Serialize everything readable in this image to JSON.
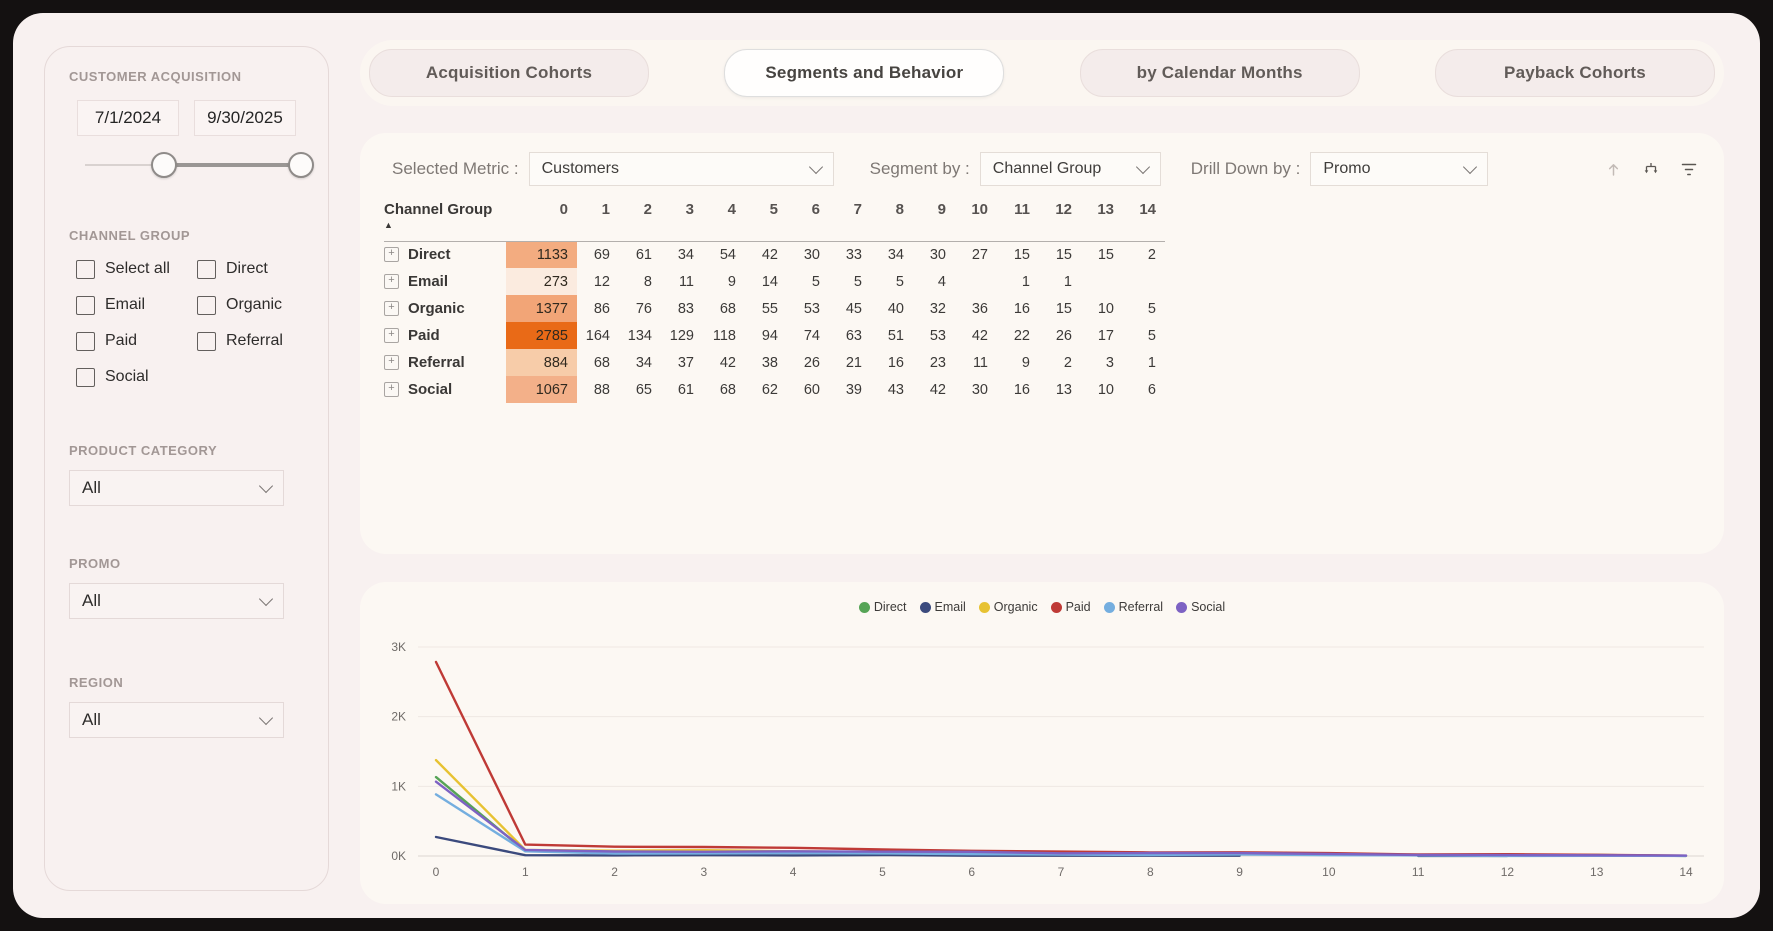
{
  "colors": {
    "page_bg": "#f8f1f0",
    "frame": "#141111",
    "panel_bg": "#fcf8f3",
    "heat_max": "#E96A17"
  },
  "sidebar": {
    "acquisition_title": "CUSTOMER ACQUISITION",
    "date_from": "7/1/2024",
    "date_to": "9/30/2025",
    "channel_group": {
      "title": "CHANNEL GROUP",
      "options": [
        "Select all",
        "Direct",
        "Email",
        "Organic",
        "Paid",
        "Referral",
        "Social"
      ]
    },
    "product_category": {
      "title": "PRODUCT CATEGORY",
      "value": "All"
    },
    "promo": {
      "title": "PROMO",
      "value": "All"
    },
    "region": {
      "title": "REGION",
      "value": "All"
    }
  },
  "tabs": [
    {
      "label": "Acquisition Cohorts",
      "active": false
    },
    {
      "label": "Segments and Behavior",
      "active": true
    },
    {
      "label": "by Calendar Months",
      "active": false
    },
    {
      "label": "Payback Cohorts",
      "active": false
    }
  ],
  "matrix": {
    "selected_metric_label": "Selected Metric :",
    "selected_metric_value": "Customers",
    "segment_by_label": "Segment by :",
    "segment_by_value": "Channel Group",
    "drilldown_label": "Drill Down by :",
    "drilldown_value": "Promo",
    "row_header": "Channel Group",
    "sort_icon": "asc-triangle",
    "col_headers": [
      "0",
      "1",
      "2",
      "3",
      "4",
      "5",
      "6",
      "7",
      "8",
      "9",
      "10",
      "11",
      "12",
      "13",
      "14"
    ],
    "rows": [
      {
        "name": "Direct",
        "heat": "#F3AC80",
        "values": [
          1133,
          69,
          61,
          34,
          54,
          42,
          30,
          33,
          34,
          30,
          27,
          15,
          15,
          15,
          2
        ]
      },
      {
        "name": "Email",
        "heat": "#FBEBDF",
        "values": [
          273,
          12,
          8,
          11,
          9,
          14,
          5,
          5,
          5,
          4,
          null,
          1,
          1,
          null,
          null
        ]
      },
      {
        "name": "Organic",
        "heat": "#F2A577",
        "values": [
          1377,
          86,
          76,
          83,
          68,
          55,
          53,
          45,
          40,
          32,
          36,
          16,
          15,
          10,
          5
        ]
      },
      {
        "name": "Paid",
        "heat": "#E96A17",
        "values": [
          2785,
          164,
          134,
          129,
          118,
          94,
          74,
          63,
          51,
          53,
          42,
          22,
          26,
          17,
          5
        ]
      },
      {
        "name": "Referral",
        "heat": "#F7CCA9",
        "values": [
          884,
          68,
          34,
          37,
          42,
          38,
          26,
          21,
          16,
          23,
          11,
          9,
          2,
          3,
          1
        ]
      },
      {
        "name": "Social",
        "heat": "#F3B089",
        "values": [
          1067,
          88,
          65,
          61,
          68,
          62,
          60,
          39,
          43,
          42,
          30,
          16,
          13,
          10,
          6
        ]
      }
    ]
  },
  "header_icons": [
    "arrow-up-icon",
    "drill-down-icon",
    "filter-icon"
  ],
  "chart_data": {
    "type": "line",
    "x": [
      0,
      1,
      2,
      3,
      4,
      5,
      6,
      7,
      8,
      9,
      10,
      11,
      12,
      13,
      14
    ],
    "xlim": [
      0,
      14
    ],
    "ylim": [
      0,
      3000
    ],
    "y_ticks": [
      {
        "label": "0K",
        "value": 0
      },
      {
        "label": "1K",
        "value": 1000
      },
      {
        "label": "2K",
        "value": 2000
      },
      {
        "label": "3K",
        "value": 3000
      }
    ],
    "grid": true,
    "legend_position": "top-center",
    "series": [
      {
        "name": "Direct",
        "color": "#56A456",
        "values": [
          1133,
          69,
          61,
          34,
          54,
          42,
          30,
          33,
          34,
          30,
          27,
          15,
          15,
          15,
          2
        ]
      },
      {
        "name": "Email",
        "color": "#3B4A7D",
        "values": [
          273,
          12,
          8,
          11,
          9,
          14,
          5,
          5,
          5,
          4,
          null,
          1,
          1,
          null,
          null
        ]
      },
      {
        "name": "Organic",
        "color": "#E7C232",
        "values": [
          1377,
          86,
          76,
          83,
          68,
          55,
          53,
          45,
          40,
          32,
          36,
          16,
          15,
          10,
          5
        ]
      },
      {
        "name": "Paid",
        "color": "#BF3A36",
        "values": [
          2785,
          164,
          134,
          129,
          118,
          94,
          74,
          63,
          51,
          53,
          42,
          22,
          26,
          17,
          5
        ]
      },
      {
        "name": "Referral",
        "color": "#74AEDF",
        "values": [
          884,
          68,
          34,
          37,
          42,
          38,
          26,
          21,
          16,
          23,
          11,
          9,
          2,
          3,
          1
        ]
      },
      {
        "name": "Social",
        "color": "#7D62C3",
        "values": [
          1067,
          88,
          65,
          61,
          68,
          62,
          60,
          39,
          43,
          42,
          30,
          16,
          13,
          10,
          6
        ]
      }
    ]
  }
}
